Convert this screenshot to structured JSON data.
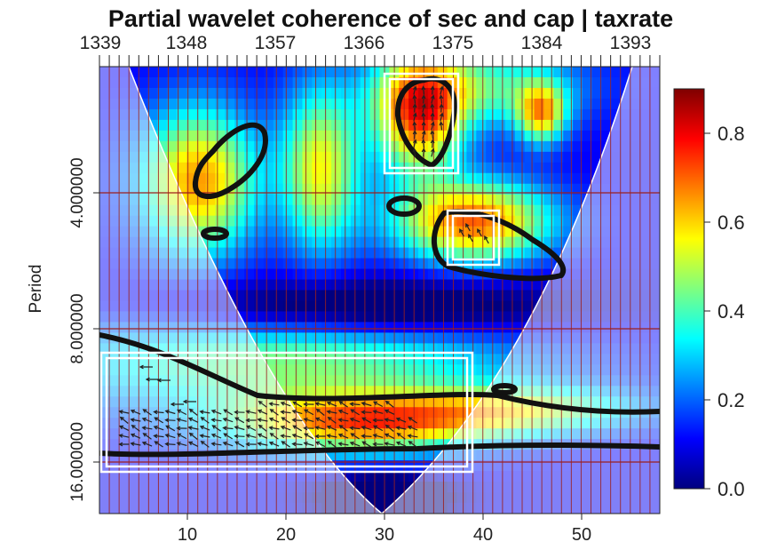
{
  "chart_data": {
    "type": "heatmap",
    "title": "Partial wavelet coherence of sec and cap | taxrate",
    "ylabel": "Period",
    "xlabel": "",
    "x_bottom_ticks": [
      "10",
      "20",
      "30",
      "40",
      "50"
    ],
    "x_top_ticks": [
      "1339",
      "1348",
      "1357",
      "1366",
      "1375",
      "1384",
      "1393"
    ],
    "y_ticks": [
      "4.000000",
      "8.000000",
      "16.000000"
    ],
    "colorbar_ticks": [
      "0.0",
      "0.2",
      "0.4",
      "0.6",
      "0.8"
    ],
    "colorbar_range": [
      0,
      0.9
    ],
    "colormap": [
      "#00007F",
      "#0000FF",
      "#007FFF",
      "#00FFFF",
      "#7FFF7F",
      "#FFFF00",
      "#FF7F00",
      "#FF0000",
      "#7F0000"
    ],
    "x_range": [
      1,
      58
    ],
    "period_range": [
      2,
      20
    ],
    "y_scale": "log2",
    "gridlines": true,
    "cone_of_influence": true
  }
}
